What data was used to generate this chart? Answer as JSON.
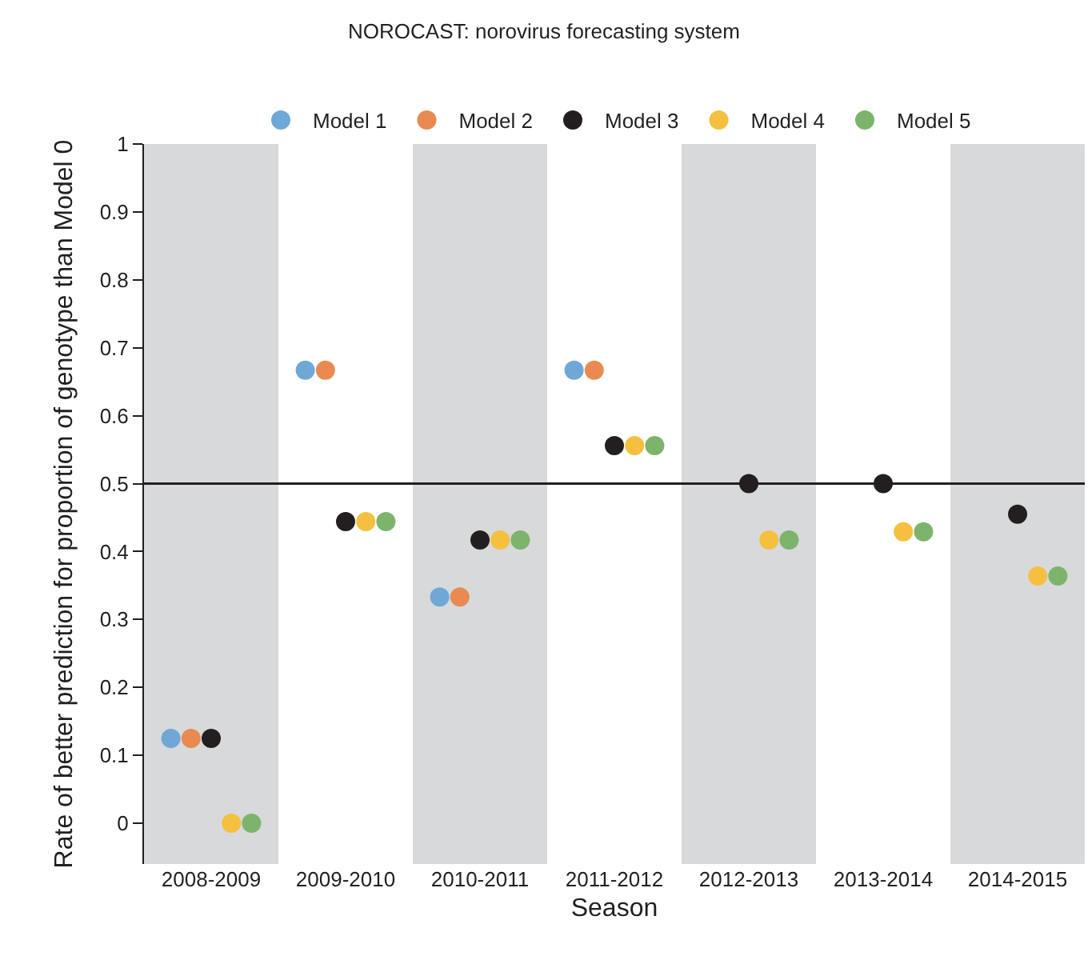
{
  "chart_data": {
    "type": "scatter",
    "title": "NOROCAST: norovirus forecasting system",
    "xlabel": "Season",
    "ylabel": "Rate of better prediction for proportion of genotype than Model 0",
    "categories": [
      "2008-2009",
      "2009-2010",
      "2010-2011",
      "2011-2012",
      "2012-2013",
      "2013-2014",
      "2014-2015"
    ],
    "series": [
      {
        "name": "Model 1",
        "color": "#6fa8d6",
        "values": [
          0.125,
          0.667,
          0.333,
          0.667,
          null,
          null,
          null
        ]
      },
      {
        "name": "Model 2",
        "color": "#e98a52",
        "values": [
          0.125,
          0.667,
          0.333,
          0.667,
          null,
          null,
          null
        ]
      },
      {
        "name": "Model 3",
        "color": "#231f20",
        "values": [
          0.125,
          0.444,
          0.417,
          0.556,
          0.5,
          0.5,
          0.455
        ]
      },
      {
        "name": "Model 4",
        "color": "#f5c040",
        "values": [
          0,
          0.444,
          0.417,
          0.556,
          0.417,
          0.429,
          0.364
        ]
      },
      {
        "name": "Model 5",
        "color": "#7db46c",
        "values": [
          0,
          0.444,
          0.417,
          0.556,
          0.417,
          0.429,
          0.364
        ]
      }
    ],
    "ylim": [
      -0.06,
      1
    ],
    "yticks": [
      0,
      0.1,
      0.2,
      0.3,
      0.4,
      0.5,
      0.6,
      0.7,
      0.8,
      0.9,
      1
    ],
    "ref_lines": [
      {
        "axis": "y",
        "value": 0.5,
        "color": "#231f20"
      }
    ],
    "bands": [
      {
        "axis": "x",
        "from": "2008-2009",
        "to": "2008-2009",
        "color": "#d8d9da"
      },
      {
        "axis": "x",
        "from": "2010-2011",
        "to": "2010-2011",
        "color": "#d8d9da"
      },
      {
        "axis": "x",
        "from": "2012-2013",
        "to": "2012-2013",
        "color": "#d8d9da"
      },
      {
        "axis": "x",
        "from": "2014-2015",
        "to": "2014-2015",
        "color": "#d8d9da"
      }
    ],
    "grid": false,
    "legend": "top",
    "marker": "circle"
  }
}
